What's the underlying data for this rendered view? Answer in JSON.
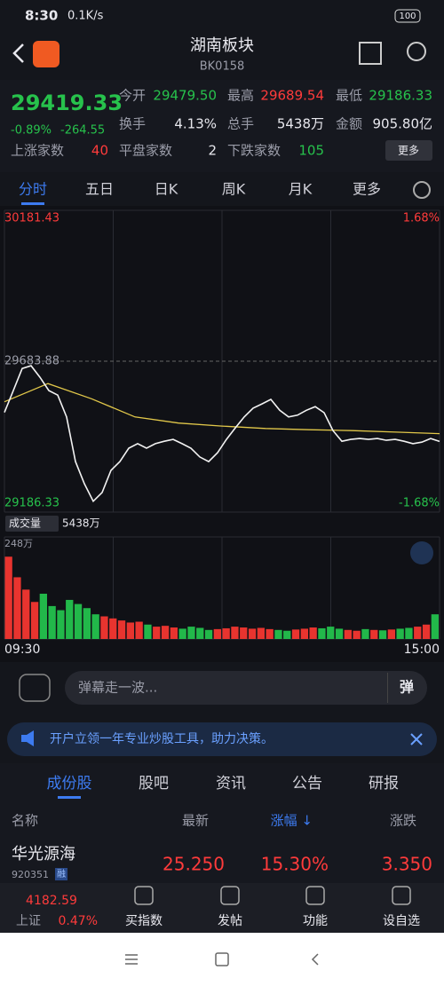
{
  "status_bar": {
    "time": "8:30",
    "speed": "0.1K/s",
    "battery": "100"
  },
  "header": {
    "title": "湖南板块",
    "code": "BK0158"
  },
  "quote": {
    "price": "29419.33",
    "change_pct": "-0.89%",
    "change": "-264.55",
    "fields": [
      {
        "label": "今开",
        "value": "29479.50"
      },
      {
        "label": "最高",
        "value": "29689.54"
      },
      {
        "label": "最低",
        "value": "29186.33"
      },
      {
        "label": "换手",
        "value": "4.13%"
      },
      {
        "label": "总手",
        "value": "5438万"
      },
      {
        "label": "金额",
        "value": "905.80亿"
      },
      {
        "label": "上涨家数",
        "value": "40"
      },
      {
        "label": "平盘家数",
        "value": "2"
      },
      {
        "label": "下跌家数",
        "value": "105"
      }
    ],
    "more": "更多"
  },
  "period_tabs": [
    "分时",
    "五日",
    "日K",
    "周K",
    "月K",
    "更多"
  ],
  "chart": {
    "ylim": [
      29186.33,
      30181.43
    ],
    "yticks": [
      29186.33,
      29683.88,
      30181.43
    ],
    "pct_top": "1.68%",
    "pct_bottom": "-1.68%",
    "price": [
      29515,
      29587,
      29660,
      29669,
      29631,
      29587,
      29572,
      29500,
      29353,
      29280,
      29222,
      29251,
      29324,
      29353,
      29397,
      29412,
      29397,
      29412,
      29420,
      29426,
      29412,
      29397,
      29368,
      29353,
      29382,
      29426,
      29464,
      29500,
      29529,
      29543,
      29558,
      29522,
      29500,
      29506,
      29522,
      29534,
      29514,
      29455,
      29420,
      29426,
      29429,
      29426,
      29429,
      29423,
      29426,
      29420,
      29412,
      29417,
      29429,
      29419.33
    ],
    "average": [
      29550,
      29610,
      29560,
      29500,
      29480,
      29470,
      29462,
      29458,
      29455,
      29450,
      29445
    ],
    "volume_label": "成交量",
    "volume_total": "5438万",
    "vlim": [
      0,
      248
    ],
    "vticks": [
      {
        "value": 248,
        "label": "248万"
      }
    ],
    "volume": [
      200,
      150,
      120,
      90,
      110,
      80,
      70,
      95,
      85,
      75,
      60,
      55,
      50,
      45,
      40,
      42,
      35,
      30,
      32,
      28,
      25,
      30,
      27,
      22,
      24,
      26,
      30,
      28,
      25,
      27,
      24,
      22,
      20,
      23,
      25,
      28,
      26,
      30,
      25,
      22,
      20,
      24,
      22,
      21,
      23,
      25,
      27,
      30,
      35,
      60
    ],
    "time_start": "09:30",
    "time_end": "15:00"
  },
  "comment_placeholder": "弹幕走一波...",
  "comment_button": "弹",
  "banner": "开户立领一年专业炒股工具，助力决策。",
  "list_tabs": [
    "成份股",
    "股吧",
    "资讯",
    "公告",
    "研报"
  ],
  "table": {
    "columns": [
      "名称",
      "最新",
      "涨幅 ↓",
      "涨跌"
    ],
    "rows": [
      {
        "name": "华光源海",
        "code": "920351",
        "tag": "融",
        "latest": "25.250",
        "change_pct": "15.30%",
        "change": "3.350"
      }
    ]
  },
  "bottom_bar": {
    "index_value": "4182.59",
    "index_name": "上证",
    "index_pct": "0.47%",
    "actions": [
      "买指数",
      "发帖",
      "功能",
      "设自选"
    ]
  }
}
